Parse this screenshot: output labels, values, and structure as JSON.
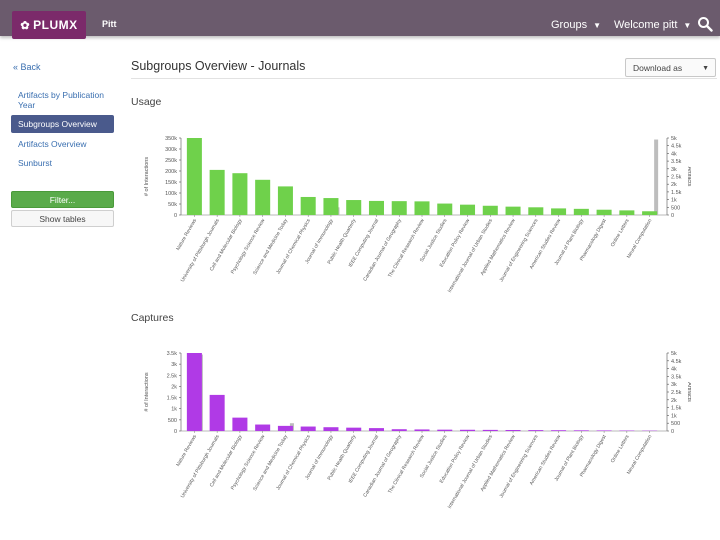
{
  "header": {
    "logo_text": "PLUMX",
    "org": "Pitt",
    "nav_groups": "Groups",
    "nav_welcome": "Welcome pitt"
  },
  "sidebar": {
    "back": "« Back",
    "items": [
      "Artifacts by Publication Year",
      "Subgroups Overview",
      "Artifacts Overview",
      "Sunburst"
    ],
    "filter_button": "Filter...",
    "tables_button": "Show tables"
  },
  "main": {
    "title": "Subgroups Overview - Journals",
    "download": "Download as"
  },
  "colors": {
    "usage_bar": "#6fd14b",
    "captures_bar": "#b03ae6",
    "artifact_bar": "#bdbdbd",
    "header_bg": "#6b5b6d"
  },
  "chart_data": [
    {
      "type": "bar",
      "title": "Usage",
      "ylabel": "# of Interactions",
      "y2label": "Artifacts",
      "ylim": [
        0,
        350000
      ],
      "yticks": [
        "0",
        "50k",
        "100k",
        "150k",
        "200k",
        "250k",
        "300k",
        "350k"
      ],
      "y2lim": [
        0,
        5000
      ],
      "y2ticks": [
        "0",
        "500",
        "1k",
        "1.5k",
        "2k",
        "2.5k",
        "3k",
        "3.5k",
        "4k",
        "4.5k",
        "5k"
      ],
      "categories": [
        "Nature Reviews",
        "University of Pittsburgh Journals",
        "Cell and Molecular Biology",
        "Psychology Science Review",
        "Science and Medicine Today",
        "Journal of Chemical Physics",
        "Journal of Immunology",
        "Public Health Quarterly",
        "IEEE Computing Journal",
        "Canadian Journal of Geography",
        "The Clinical Research Review",
        "Social Justice Studies",
        "Education Policy Review",
        "International Journal of Urban Studies",
        "Applied Mathematics Review",
        "Journal of Engineering Sciences",
        "American Studies Review",
        "Journal of Plant Biology",
        "Pharmacology Digest",
        "Online Letters",
        "Neural Computation"
      ],
      "series": [
        {
          "name": "Interactions",
          "values": [
            350000,
            205000,
            190000,
            160000,
            130000,
            82000,
            77000,
            68000,
            64000,
            63000,
            62000,
            52000,
            47000,
            42000,
            38000,
            35000,
            30000,
            28000,
            24000,
            21000,
            17000
          ]
        },
        {
          "name": "Artifacts",
          "values": [
            0,
            0,
            0,
            0,
            0,
            0,
            500,
            0,
            0,
            0,
            0,
            0,
            0,
            0,
            0,
            0,
            0,
            0,
            0,
            0,
            4900
          ]
        }
      ]
    },
    {
      "type": "bar",
      "title": "Captures",
      "ylabel": "# of Interactions",
      "y2label": "Artifacts",
      "ylim": [
        0,
        3500
      ],
      "yticks": [
        "0",
        "500",
        "1k",
        "1.5k",
        "2k",
        "2.5k",
        "3k",
        "3.5k"
      ],
      "y2lim": [
        0,
        5000
      ],
      "y2ticks": [
        "0",
        "500",
        "1k",
        "1.5k",
        "2k",
        "2.5k",
        "3k",
        "3.5k",
        "4k",
        "4.5k",
        "5k"
      ],
      "categories": [
        "Nature Reviews",
        "University of Pittsburgh Journals",
        "Cell and Molecular Biology",
        "Psychology Science Review",
        "Science and Medicine Today",
        "Journal of Chemical Physics",
        "Journal of Immunology",
        "Public Health Quarterly",
        "IEEE Computing Journal",
        "Canadian Journal of Geography",
        "The Clinical Research Review",
        "Social Justice Studies",
        "Education Policy Review",
        "International Journal of Urban Studies",
        "Applied Mathematics Review",
        "Journal of Engineering Sciences",
        "American Studies Review",
        "Journal of Plant Biology",
        "Pharmacology Digest",
        "Online Letters",
        "Neural Computation"
      ],
      "series": [
        {
          "name": "Interactions",
          "values": [
            3500,
            1620,
            600,
            290,
            230,
            200,
            170,
            150,
            130,
            80,
            70,
            60,
            55,
            50,
            45,
            40,
            35,
            30,
            25,
            20,
            15
          ]
        },
        {
          "name": "Artifacts",
          "values": [
            4900,
            0,
            0,
            0,
            500,
            0,
            0,
            0,
            0,
            0,
            0,
            0,
            0,
            0,
            0,
            0,
            0,
            0,
            0,
            0,
            0
          ]
        }
      ]
    }
  ]
}
